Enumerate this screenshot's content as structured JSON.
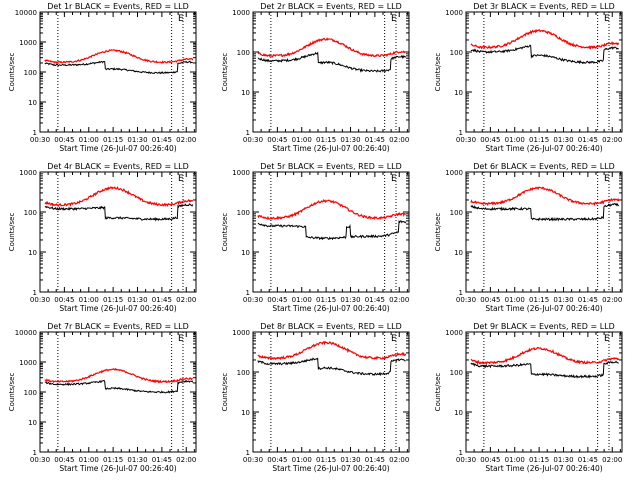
{
  "chart_data": [
    {
      "type": "line",
      "title": "Det 1r BLACK = Events, RED = LLD",
      "xlabel": "Start Time (26-Jul-07 00:26:40)",
      "ylabel": "Counts/sec",
      "ylim": [
        1,
        10000
      ],
      "yscale": "log",
      "xlim": [
        "00:30",
        "02:06"
      ],
      "xticks": [
        "00:30",
        "00:45",
        "01:00",
        "01:15",
        "01:30",
        "01:45",
        "02:00"
      ],
      "yticks": [
        "1",
        "10",
        "100",
        "1000",
        "10000"
      ],
      "markers_vertical_dotted": [
        "00:41",
        "01:51",
        "01:58"
      ],
      "legend_glyph": "E",
      "legend_position": "top-right",
      "series": [
        {
          "color": "#000000",
          "base": 170,
          "peak": 230,
          "drops": [
            [
              75,
              165
            ]
          ]
        },
        {
          "color": "#ff0000",
          "base": 210,
          "peak": 520,
          "drops": []
        }
      ]
    },
    {
      "type": "line",
      "title": "Det 2r BLACK = Events, RED = LLD",
      "xlabel": "Start Time (26-Jul-07 00:26:40)",
      "ylabel": "Counts/sec",
      "ylim": [
        1,
        1000
      ],
      "yscale": "log",
      "xlim": [
        "00:30",
        "02:06"
      ],
      "xticks": [
        "00:30",
        "00:45",
        "01:00",
        "01:15",
        "01:30",
        "01:45",
        "02:00"
      ],
      "yticks": [
        "1",
        "10",
        "100",
        "1000"
      ],
      "markers_vertical_dotted": [
        "00:41",
        "01:51",
        "01:58"
      ],
      "legend_glyph": "E",
      "legend_position": "top-right",
      "series": [
        {
          "color": "#000000",
          "base": 60,
          "peak": 100,
          "drops": [
            [
              75,
              165
            ]
          ]
        },
        {
          "color": "#ff0000",
          "base": 80,
          "peak": 210,
          "drops": []
        }
      ]
    },
    {
      "type": "line",
      "title": "Det 3r BLACK = Events, RED = LLD",
      "xlabel": "Start Time (26-Jul-07 00:26:40)",
      "ylabel": "Counts/sec",
      "ylim": [
        1,
        1000
      ],
      "yscale": "log",
      "xlim": [
        "00:30",
        "02:06"
      ],
      "xticks": [
        "00:30",
        "00:45",
        "01:00",
        "01:15",
        "01:30",
        "01:45",
        "02:00"
      ],
      "yticks": [
        "1",
        "10",
        "100",
        "1000"
      ],
      "markers_vertical_dotted": [
        "00:41",
        "01:51",
        "01:58"
      ],
      "legend_glyph": "E",
      "legend_position": "top-right",
      "series": [
        {
          "color": "#000000",
          "base": 100,
          "peak": 150,
          "drops": [
            [
              75,
              165
            ]
          ]
        },
        {
          "color": "#ff0000",
          "base": 130,
          "peak": 340,
          "drops": []
        }
      ]
    },
    {
      "type": "line",
      "title": "Det 4r BLACK = Events, RED = LLD",
      "xlabel": "Start Time (26-Jul-07 00:26:40)",
      "ylabel": "Counts/sec",
      "ylim": [
        1,
        1000
      ],
      "yscale": "log",
      "xlim": [
        "00:30",
        "02:06"
      ],
      "xticks": [
        "00:30",
        "00:45",
        "01:00",
        "01:15",
        "01:30",
        "01:45",
        "02:00"
      ],
      "yticks": [
        "1",
        "10",
        "100",
        "1000"
      ],
      "markers_vertical_dotted": [
        "00:41",
        "01:51",
        "01:58"
      ],
      "legend_glyph": "E",
      "legend_position": "top-right",
      "series": [
        {
          "color": "#000000",
          "base": 120,
          "peak": 130,
          "drops": [
            [
              75,
              165
            ]
          ]
        },
        {
          "color": "#ff0000",
          "base": 150,
          "peak": 400,
          "drops": []
        }
      ]
    },
    {
      "type": "line",
      "title": "Det 5r BLACK = Events, RED = LLD",
      "xlabel": "Start Time (26-Jul-07 00:26:40)",
      "ylabel": "Counts/sec",
      "ylim": [
        1,
        1000
      ],
      "yscale": "log",
      "xlim": [
        "00:30",
        "02:06"
      ],
      "xticks": [
        "00:30",
        "00:45",
        "01:00",
        "01:15",
        "01:30",
        "01:45",
        "02:00"
      ],
      "yticks": [
        "1",
        "10",
        "100",
        "1000"
      ],
      "markers_vertical_dotted": [
        "00:41",
        "01:51",
        "01:58"
      ],
      "legend_glyph": "E",
      "legend_position": "top-right",
      "series": [
        {
          "color": "#000000",
          "base": 45,
          "peak": 40,
          "drops": [
            [
              60,
              110
            ],
            [
              115,
              175
            ]
          ]
        },
        {
          "color": "#ff0000",
          "base": 70,
          "peak": 190,
          "drops": []
        }
      ]
    },
    {
      "type": "line",
      "title": "Det 6r BLACK = Events, RED = LLD",
      "xlabel": "Start Time (26-Jul-07 00:26:40)",
      "ylabel": "Counts/sec",
      "ylim": [
        1,
        1000
      ],
      "yscale": "log",
      "xlim": [
        "00:30",
        "02:06"
      ],
      "xticks": [
        "00:30",
        "00:45",
        "01:00",
        "01:15",
        "01:30",
        "01:45",
        "02:00"
      ],
      "yticks": [
        "1",
        "10",
        "100",
        "1000"
      ],
      "markers_vertical_dotted": [
        "00:41",
        "01:51",
        "01:58"
      ],
      "legend_glyph": "E",
      "legend_position": "top-right",
      "series": [
        {
          "color": "#000000",
          "base": 120,
          "peak": 120,
          "drops": [
            [
              75,
              165
            ]
          ]
        },
        {
          "color": "#ff0000",
          "base": 160,
          "peak": 400,
          "drops": []
        }
      ]
    },
    {
      "type": "line",
      "title": "Det 7r BLACK = Events, RED = LLD",
      "xlabel": "Start Time (26-Jul-07 00:26:40)",
      "ylabel": "Counts/sec",
      "ylim": [
        1,
        10000
      ],
      "yscale": "log",
      "xlim": [
        "00:30",
        "02:06"
      ],
      "xticks": [
        "00:30",
        "00:45",
        "01:00",
        "01:15",
        "01:30",
        "01:45",
        "02:00"
      ],
      "yticks": [
        "1",
        "10",
        "100",
        "1000",
        "10000"
      ],
      "markers_vertical_dotted": [
        "00:41",
        "01:51",
        "01:58"
      ],
      "legend_glyph": "E",
      "legend_position": "top-right",
      "series": [
        {
          "color": "#000000",
          "base": 180,
          "peak": 240,
          "drops": [
            [
              75,
              165
            ]
          ]
        },
        {
          "color": "#ff0000",
          "base": 220,
          "peak": 560,
          "drops": []
        }
      ]
    },
    {
      "type": "line",
      "title": "Det 8r BLACK = Events, RED = LLD",
      "xlabel": "Start Time (26-Jul-07 00:26:40)",
      "ylabel": "Counts/sec",
      "ylim": [
        1,
        1000
      ],
      "yscale": "log",
      "xlim": [
        "00:30",
        "02:06"
      ],
      "xticks": [
        "00:30",
        "00:45",
        "01:00",
        "01:15",
        "01:30",
        "01:45",
        "02:00"
      ],
      "yticks": [
        "1",
        "10",
        "100",
        "1000"
      ],
      "markers_vertical_dotted": [
        "00:41",
        "01:51",
        "01:58"
      ],
      "legend_glyph": "E",
      "legend_position": "top-right",
      "series": [
        {
          "color": "#000000",
          "base": 160,
          "peak": 230,
          "drops": [
            [
              75,
              165
            ]
          ]
        },
        {
          "color": "#ff0000",
          "base": 220,
          "peak": 540,
          "drops": []
        }
      ]
    },
    {
      "type": "line",
      "title": "Det 9r BLACK = Events, RED = LLD",
      "xlabel": "Start Time (26-Jul-07 00:26:40)",
      "ylabel": "Counts/sec",
      "ylim": [
        1,
        1000
      ],
      "yscale": "log",
      "xlim": [
        "00:30",
        "02:06"
      ],
      "xticks": [
        "00:30",
        "00:45",
        "01:00",
        "01:15",
        "01:30",
        "01:45",
        "02:00"
      ],
      "yticks": [
        "1",
        "10",
        "100",
        "1000"
      ],
      "markers_vertical_dotted": [
        "00:41",
        "01:51",
        "01:58"
      ],
      "legend_glyph": "E",
      "legend_position": "top-right",
      "series": [
        {
          "color": "#000000",
          "base": 140,
          "peak": 160,
          "drops": [
            [
              75,
              165
            ]
          ]
        },
        {
          "color": "#ff0000",
          "base": 170,
          "peak": 390,
          "drops": []
        }
      ]
    }
  ]
}
